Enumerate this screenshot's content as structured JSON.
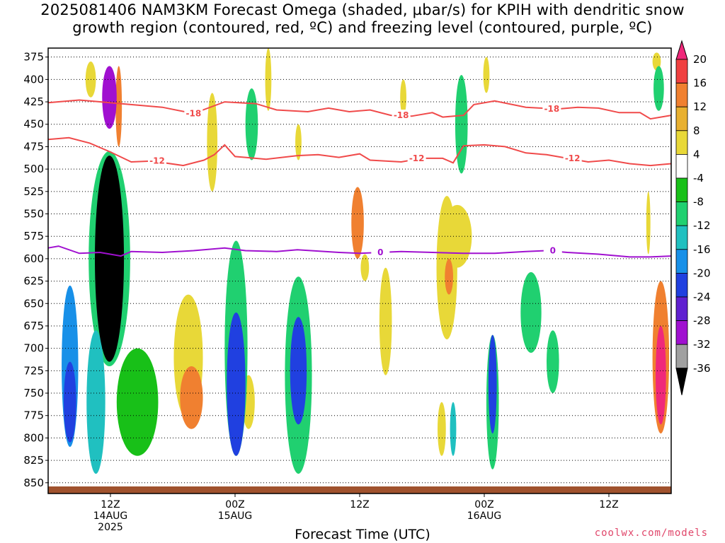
{
  "title_line1": "2025081406 NAM3KM Forecast Omega (shaded, µbar/s) for KPIH with dendritic snow",
  "title_line2": "growth region (contoured, red, ºC) and freezing level (contoured, purple, ºC)",
  "xlabel": "Forecast Time (UTC)",
  "credit": "coolwx.com/models",
  "chart_data": {
    "type": "heatmap",
    "title": "2025081406 NAM3KM Forecast Omega (shaded, µbar/s) for KPIH with dendritic snow growth region (contoured, red, ºC) and freezing level (contoured, purple, ºC)",
    "xlabel": "Forecast Time (UTC)",
    "ylabel": "",
    "y_ticks": [
      375,
      400,
      425,
      450,
      475,
      500,
      525,
      550,
      575,
      600,
      625,
      650,
      675,
      700,
      725,
      750,
      775,
      800,
      825,
      850
    ],
    "x_ticks": [
      {
        "h": 6,
        "l1": "12Z",
        "l2": "14AUG",
        "l3": "2025"
      },
      {
        "h": 18,
        "l1": "00Z",
        "l2": "15AUG",
        "l3": ""
      },
      {
        "h": 30,
        "l1": "12Z",
        "l2": "",
        "l3": ""
      },
      {
        "h": 42,
        "l1": "00Z",
        "l2": "16AUG",
        "l3": ""
      },
      {
        "h": 54,
        "l1": "12Z",
        "l2": "",
        "l3": ""
      }
    ],
    "x_range_hours": [
      0,
      60
    ],
    "y_range_mb": [
      365,
      862
    ],
    "colorbar": {
      "labels": [
        20,
        16,
        12,
        8,
        4,
        -4,
        -8,
        -12,
        -16,
        -20,
        -24,
        -28,
        -32,
        -36
      ],
      "colors": [
        "#f0287a",
        "#f04040",
        "#f08030",
        "#e8b030",
        "#e8d838",
        "#ffffff",
        "#18c018",
        "#20d070",
        "#20c0c0",
        "#1890e8",
        "#2040e0",
        "#6020d0",
        "#a010d0",
        "#a0a0a0",
        "#000000"
      ]
    },
    "contours": [
      {
        "name": "-18",
        "color": "#f04a4a",
        "label_hours": [
          14,
          34,
          48.5
        ],
        "points": [
          [
            0,
            426
          ],
          [
            3,
            423
          ],
          [
            7,
            427
          ],
          [
            11,
            431
          ],
          [
            14,
            438
          ],
          [
            17,
            425
          ],
          [
            20,
            427
          ],
          [
            22,
            434
          ],
          [
            25,
            436
          ],
          [
            27,
            432
          ],
          [
            29,
            436
          ],
          [
            31,
            434
          ],
          [
            33,
            440
          ],
          [
            35,
            441
          ],
          [
            37,
            437
          ],
          [
            38,
            442
          ],
          [
            40,
            440
          ],
          [
            41,
            428
          ],
          [
            43,
            424
          ],
          [
            46,
            431
          ],
          [
            49,
            433
          ],
          [
            51,
            431
          ],
          [
            53,
            432
          ],
          [
            55,
            437
          ],
          [
            57,
            437
          ],
          [
            58,
            444
          ],
          [
            60,
            440
          ]
        ]
      },
      {
        "name": "-12",
        "color": "#f04a4a",
        "label_hours": [
          10.5,
          35.5,
          50.5
        ],
        "points": [
          [
            0,
            467
          ],
          [
            2,
            465
          ],
          [
            4,
            471
          ],
          [
            6,
            481
          ],
          [
            8,
            492
          ],
          [
            10,
            491
          ],
          [
            13,
            496
          ],
          [
            15,
            490
          ],
          [
            16,
            484
          ],
          [
            17,
            473
          ],
          [
            18,
            486
          ],
          [
            19,
            487
          ],
          [
            21,
            489
          ],
          [
            24,
            485
          ],
          [
            26,
            484
          ],
          [
            28,
            487
          ],
          [
            30,
            483
          ],
          [
            31,
            490
          ],
          [
            34,
            492
          ],
          [
            36,
            488
          ],
          [
            38,
            488
          ],
          [
            39,
            493
          ],
          [
            40,
            474
          ],
          [
            42,
            473
          ],
          [
            44,
            475
          ],
          [
            46,
            482
          ],
          [
            48,
            484
          ],
          [
            50,
            488
          ],
          [
            52,
            492
          ],
          [
            54,
            490
          ],
          [
            56,
            494
          ],
          [
            58,
            496
          ],
          [
            60,
            494
          ]
        ]
      },
      {
        "name": "0",
        "color": "#a010d0",
        "label_hours": [
          32,
          48.6
        ],
        "points": [
          [
            0,
            588
          ],
          [
            1,
            586
          ],
          [
            3,
            594
          ],
          [
            5,
            593
          ],
          [
            7,
            597
          ],
          [
            8,
            592
          ],
          [
            11,
            593
          ],
          [
            14,
            591
          ],
          [
            17,
            588
          ],
          [
            19,
            591
          ],
          [
            22,
            592
          ],
          [
            24,
            590
          ],
          [
            28,
            593
          ],
          [
            30,
            594
          ],
          [
            32,
            593
          ],
          [
            34,
            592
          ],
          [
            37,
            593
          ],
          [
            40,
            594
          ],
          [
            43,
            594
          ],
          [
            46,
            592
          ],
          [
            48,
            591
          ],
          [
            50,
            593
          ],
          [
            53,
            595
          ],
          [
            56,
            598
          ],
          [
            58,
            598
          ],
          [
            60,
            597
          ]
        ]
      }
    ],
    "omega_regions": [
      {
        "h": 2.1,
        "p": 720,
        "hw": 0.8,
        "pw": 180,
        "v": -16
      },
      {
        "h": 2.1,
        "p": 760,
        "hw": 0.6,
        "pw": 90,
        "v": -22
      },
      {
        "h": 4.6,
        "p": 760,
        "hw": 0.9,
        "pw": 160,
        "v": -14
      },
      {
        "h": 5.9,
        "p": 600,
        "hw": 2.0,
        "pw": 240,
        "v": -10
      },
      {
        "h": 5.9,
        "p": 600,
        "hw": 1.4,
        "pw": 230,
        "v": -36
      },
      {
        "h": 5.9,
        "p": 420,
        "hw": 0.7,
        "pw": 70,
        "v": -28
      },
      {
        "h": 6.8,
        "p": 430,
        "hw": 0.3,
        "pw": 90,
        "v": 12
      },
      {
        "h": 4.1,
        "p": 400,
        "hw": 0.5,
        "pw": 40,
        "v": 4
      },
      {
        "h": 8.6,
        "p": 760,
        "hw": 2.0,
        "pw": 120,
        "v": -6
      },
      {
        "h": 13.8,
        "p": 755,
        "hw": 1.1,
        "pw": 70,
        "v": 12
      },
      {
        "h": 13.5,
        "p": 710,
        "hw": 1.4,
        "pw": 140,
        "v": 4
      },
      {
        "h": 15.8,
        "p": 470,
        "hw": 0.5,
        "pw": 110,
        "v": 4
      },
      {
        "h": 18.1,
        "p": 740,
        "hw": 0.9,
        "pw": 160,
        "v": -20
      },
      {
        "h": 18.1,
        "p": 700,
        "hw": 1.1,
        "pw": 240,
        "v": -8
      },
      {
        "h": 19.3,
        "p": 760,
        "hw": 0.6,
        "pw": 60,
        "v": 4
      },
      {
        "h": 19.6,
        "p": 450,
        "hw": 0.6,
        "pw": 80,
        "v": -8
      },
      {
        "h": 21.2,
        "p": 400,
        "hw": 0.3,
        "pw": 70,
        "v": 4
      },
      {
        "h": 24.1,
        "p": 725,
        "hw": 0.8,
        "pw": 120,
        "v": -20
      },
      {
        "h": 24.1,
        "p": 730,
        "hw": 1.3,
        "pw": 220,
        "v": -8
      },
      {
        "h": 24.1,
        "p": 470,
        "hw": 0.3,
        "pw": 40,
        "v": 4
      },
      {
        "h": 29.8,
        "p": 560,
        "hw": 0.6,
        "pw": 80,
        "v": 12
      },
      {
        "h": 30.5,
        "p": 610,
        "hw": 0.4,
        "pw": 30,
        "v": 4
      },
      {
        "h": 32.5,
        "p": 670,
        "hw": 0.6,
        "pw": 120,
        "v": 4
      },
      {
        "h": 34.2,
        "p": 420,
        "hw": 0.3,
        "pw": 40,
        "v": 4
      },
      {
        "h": 38.4,
        "p": 610,
        "hw": 1.0,
        "pw": 160,
        "v": 4
      },
      {
        "h": 38.6,
        "p": 620,
        "hw": 0.4,
        "pw": 40,
        "v": 12
      },
      {
        "h": 39.8,
        "p": 450,
        "hw": 0.6,
        "pw": 110,
        "v": -8
      },
      {
        "h": 39.4,
        "p": 575,
        "hw": 1.4,
        "pw": 70,
        "v": 4
      },
      {
        "h": 37.9,
        "p": 790,
        "hw": 0.4,
        "pw": 60,
        "v": 4
      },
      {
        "h": 39.0,
        "p": 790,
        "hw": 0.3,
        "pw": 60,
        "v": -12
      },
      {
        "h": 42.8,
        "p": 740,
        "hw": 0.4,
        "pw": 110,
        "v": -20
      },
      {
        "h": 42.8,
        "p": 760,
        "hw": 0.6,
        "pw": 150,
        "v": -8
      },
      {
        "h": 42.2,
        "p": 395,
        "hw": 0.3,
        "pw": 40,
        "v": 4
      },
      {
        "h": 46.5,
        "p": 660,
        "hw": 1.0,
        "pw": 90,
        "v": -8
      },
      {
        "h": 48.6,
        "p": 715,
        "hw": 0.6,
        "pw": 70,
        "v": -8
      },
      {
        "h": 59.0,
        "p": 730,
        "hw": 0.5,
        "pw": 110,
        "v": 20
      },
      {
        "h": 59.0,
        "p": 710,
        "hw": 0.8,
        "pw": 170,
        "v": 12
      },
      {
        "h": 58.8,
        "p": 410,
        "hw": 0.5,
        "pw": 50,
        "v": -10
      },
      {
        "h": 58.6,
        "p": 380,
        "hw": 0.4,
        "pw": 20,
        "v": 4
      },
      {
        "h": 57.8,
        "p": 560,
        "hw": 0.2,
        "pw": 70,
        "v": 4
      }
    ]
  }
}
